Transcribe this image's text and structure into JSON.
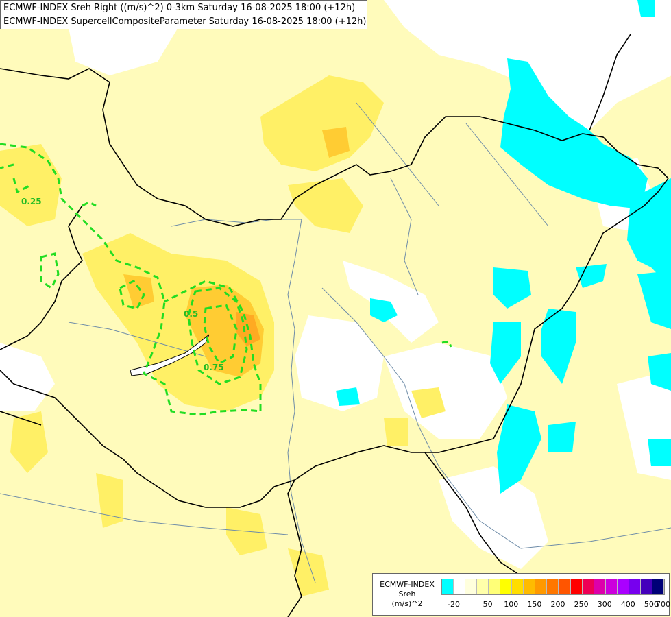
{
  "header": {
    "line1": "ECMWF-INDEX Sreh Right ((m/s)^2) 0-3km Saturday 16-08-2025 18:00 (+12h)",
    "line2": "ECMWF-INDEX SupercellCompositeParameter Saturday 16-08-2025 18:00 (+12h)"
  },
  "contour_labels": [
    "0.25",
    "0.5",
    "0.75"
  ],
  "legend": {
    "title1": "ECMWF-INDEX",
    "title2": "Sreh",
    "unit": "(m/s)^2",
    "ticks": [
      "-20",
      "50",
      "100",
      "150",
      "200",
      "250",
      "300",
      "400",
      "500",
      "700"
    ],
    "colors": [
      "#00ffff",
      "#ffffff",
      "#ffffdd",
      "#ffffaa",
      "#ffff77",
      "#ffff00",
      "#ffdd00",
      "#ffbb00",
      "#ff9900",
      "#ff7700",
      "#ff5500",
      "#ff0000",
      "#ee0055",
      "#dd00aa",
      "#cc00dd",
      "#aa00ff",
      "#7700ee",
      "#4400bb",
      "#000077"
    ]
  },
  "colors": {
    "contour": "#22dd22",
    "cyan": "#00ffff",
    "yellow_light": "#ffffaa",
    "yellow_mid": "#ffee44",
    "orange": "#ffcc22",
    "border": "#000000",
    "river": "#6e8ca8"
  }
}
